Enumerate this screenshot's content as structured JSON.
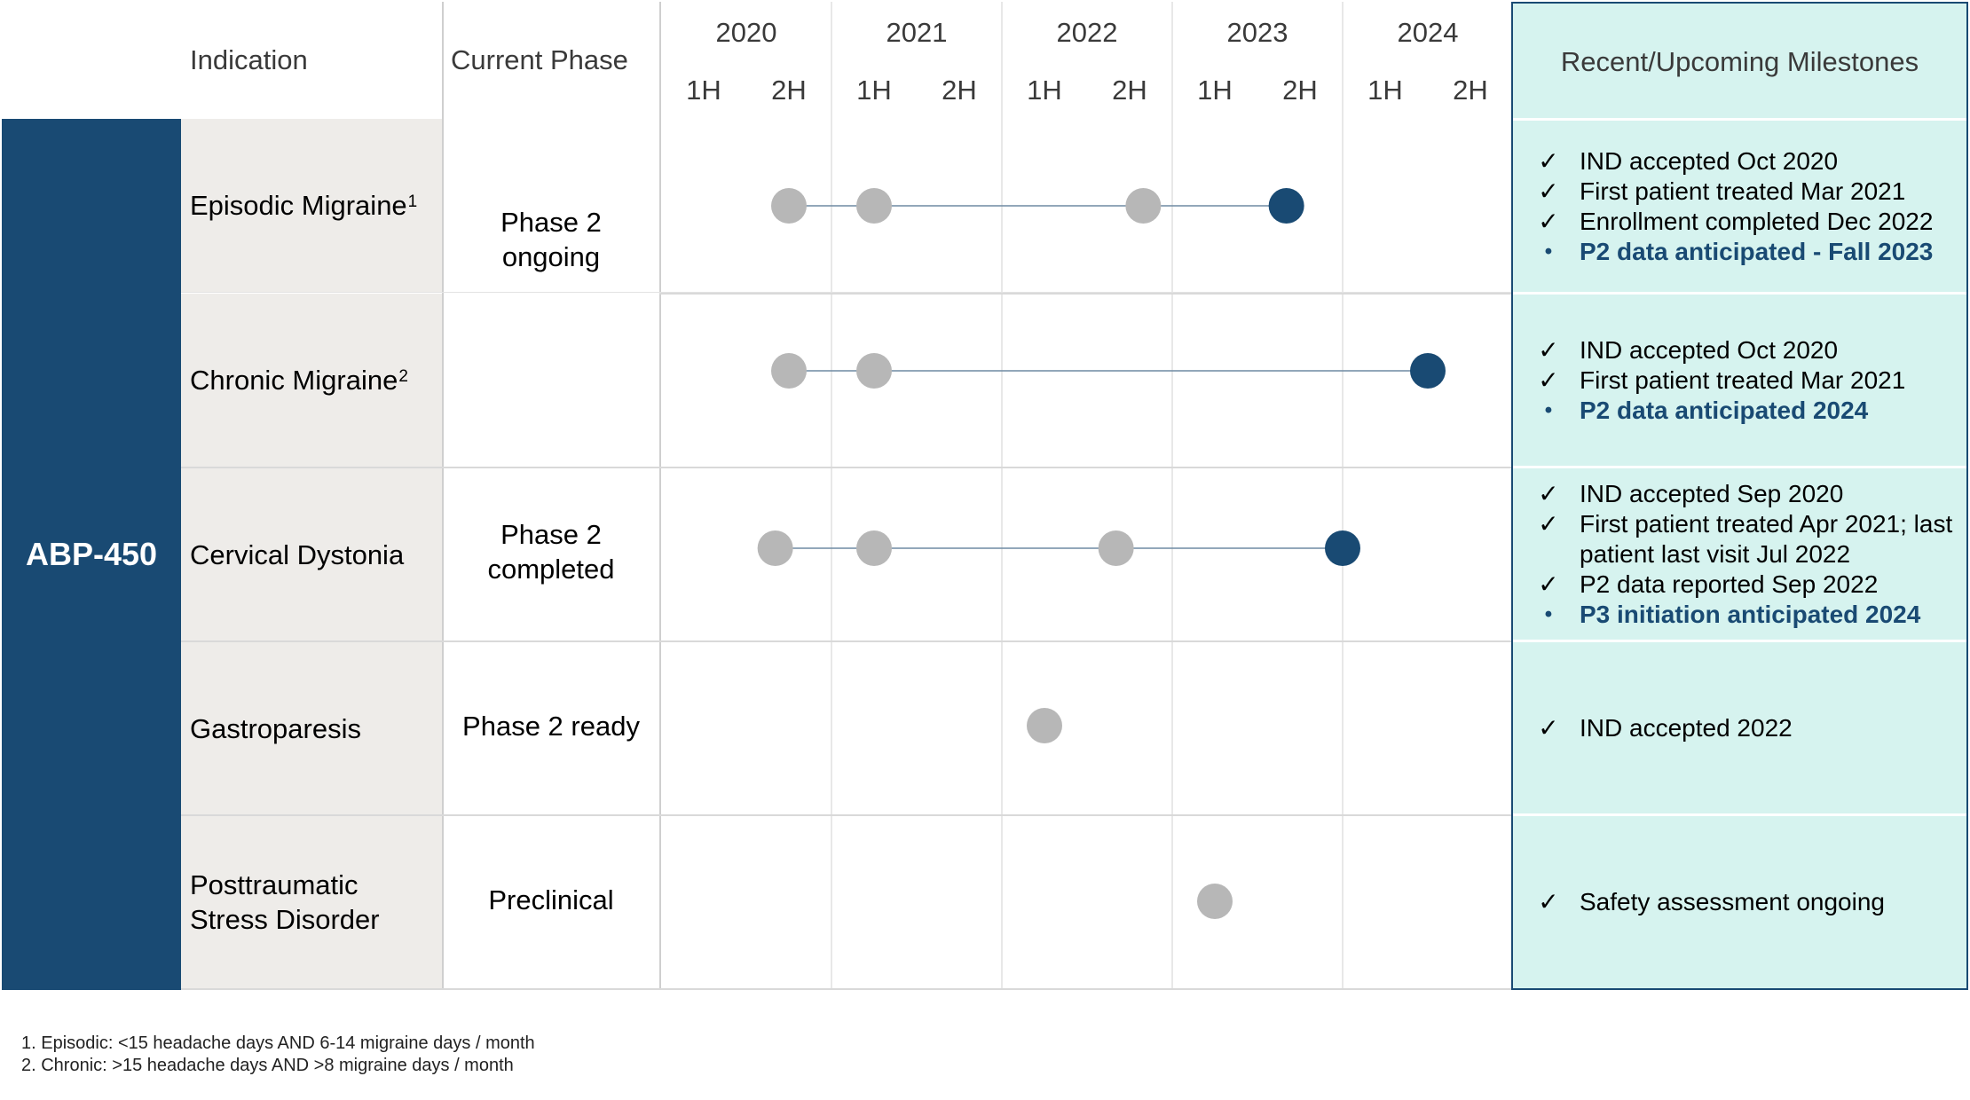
{
  "header": {
    "indication": "Indication",
    "current_phase": "Current Phase",
    "milestones": "Recent/Upcoming Milestones"
  },
  "timeline": {
    "years": [
      "2020",
      "2021",
      "2022",
      "2023",
      "2024"
    ],
    "halves": [
      "1H",
      "2H",
      "1H",
      "2H",
      "1H",
      "2H",
      "1H",
      "2H",
      "1H",
      "2H"
    ]
  },
  "drug": "ABP-450",
  "rows": [
    {
      "indication": "Episodic Migraine",
      "footnote_ref": "1",
      "markers": [
        {
          "time": 2020.75,
          "status": "completed"
        },
        {
          "time": 2021.25,
          "status": "completed"
        },
        {
          "time": 2022.83,
          "status": "completed"
        },
        {
          "time": 2023.67,
          "status": "upcoming"
        }
      ],
      "milestones": [
        {
          "mark": "✓",
          "text": "IND accepted Oct 2020",
          "upcoming": false
        },
        {
          "mark": "✓",
          "text": "First patient treated Mar 2021",
          "upcoming": false
        },
        {
          "mark": "✓",
          "text": "Enrollment completed Dec 2022",
          "upcoming": false
        },
        {
          "mark": "•",
          "text": "P2 data anticipated - Fall 2023",
          "upcoming": true
        }
      ]
    },
    {
      "indication": "Chronic Migraine",
      "footnote_ref": "2",
      "markers": [
        {
          "time": 2020.75,
          "status": "completed"
        },
        {
          "time": 2021.25,
          "status": "completed"
        },
        {
          "time": 2024.5,
          "status": "upcoming"
        }
      ],
      "milestones": [
        {
          "mark": "✓",
          "text": "IND accepted Oct 2020",
          "upcoming": false
        },
        {
          "mark": "✓",
          "text": "First patient treated Mar 2021",
          "upcoming": false
        },
        {
          "mark": "•",
          "text": "P2 data anticipated 2024",
          "upcoming": true
        }
      ]
    },
    {
      "indication": "Cervical Dystonia",
      "markers": [
        {
          "time": 2020.67,
          "status": "completed"
        },
        {
          "time": 2021.25,
          "status": "completed"
        },
        {
          "time": 2022.67,
          "status": "completed"
        },
        {
          "time": 2024.0,
          "status": "upcoming"
        }
      ],
      "milestones": [
        {
          "mark": "✓",
          "text": "IND accepted Sep 2020",
          "upcoming": false
        },
        {
          "mark": "✓",
          "text": "First patient treated Apr 2021; last patient last visit Jul 2022",
          "upcoming": false
        },
        {
          "mark": "✓",
          "text": "P2 data reported Sep 2022",
          "upcoming": false
        },
        {
          "mark": "•",
          "text": "P3 initiation anticipated 2024",
          "upcoming": true
        }
      ]
    },
    {
      "indication": "Gastroparesis",
      "markers": [
        {
          "time": 2022.25,
          "status": "completed"
        }
      ],
      "milestones": [
        {
          "mark": "✓",
          "text": "IND accepted 2022",
          "upcoming": false
        }
      ]
    },
    {
      "indication": "Posttraumatic Stress Disorder",
      "markers": [
        {
          "time": 2023.25,
          "status": "completed"
        }
      ],
      "milestones": [
        {
          "mark": "✓",
          "text": "Safety assessment ongoing",
          "upcoming": false
        }
      ]
    }
  ],
  "phases": [
    {
      "label": "Phase 2 ongoing"
    },
    {
      "label": "Phase 2 completed"
    },
    {
      "label": "Phase 2 ready"
    },
    {
      "label": "Preclinical"
    }
  ],
  "footnotes": [
    "1. Episodic: <15 headache days AND 6-14 migraine days / month",
    "2. Chronic: >15 headache days AND >8 migraine days / month"
  ],
  "colors": {
    "drug_bar": "#194a73",
    "indication_bg": "#eeece9",
    "milestone_bg": "#d6f3ef",
    "marker_completed": "#b7b7b7",
    "marker_upcoming": "#194a73",
    "connector": "#6f8aa3"
  }
}
